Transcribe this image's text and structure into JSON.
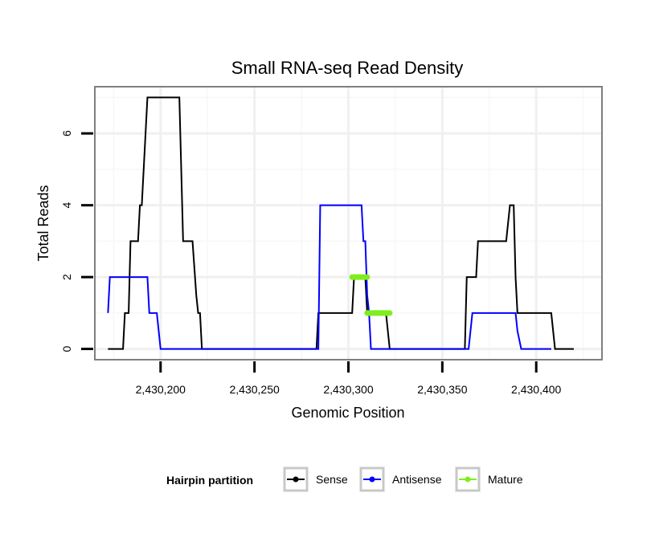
{
  "chart_data": {
    "type": "line",
    "title": "Small RNA-seq Read Density",
    "xlabel": "Genomic Position",
    "ylabel": "Total Reads",
    "xlim": [
      2430165,
      2430435
    ],
    "ylim": [
      -0.3,
      7.3
    ],
    "x_ticks": [
      2430200,
      2430250,
      2430300,
      2430350,
      2430400
    ],
    "x_tick_labels": [
      "2,430,200",
      "2,430,250",
      "2,430,300",
      "2,430,350",
      "2,430,400"
    ],
    "y_ticks": [
      0,
      2,
      4,
      6
    ],
    "y_tick_labels": [
      "0",
      "2",
      "4",
      "6"
    ],
    "grid": true,
    "legend": {
      "title": "Hairpin partition",
      "position": "bottom",
      "entries": [
        "Sense",
        "Antisense",
        "Mature"
      ]
    },
    "series": [
      {
        "name": "Sense",
        "color": "#000000",
        "x": [
          2430172,
          2430180,
          2430181,
          2430183,
          2430184,
          2430188,
          2430189,
          2430190,
          2430193,
          2430194,
          2430210,
          2430212,
          2430217,
          2430219,
          2430220,
          2430221,
          2430222,
          2430283,
          2430284,
          2430285,
          2430302,
          2430303,
          2430309,
          2430310,
          2430312,
          2430313,
          2430320,
          2430321,
          2430322,
          2430362,
          2430363,
          2430368,
          2430369,
          2430370,
          2430384,
          2430386,
          2430388,
          2430389,
          2430390,
          2430391,
          2430400,
          2430408,
          2430410,
          2430420
        ],
        "y": [
          0,
          0,
          1,
          1,
          3,
          3,
          4,
          4,
          7,
          7,
          7,
          3,
          3,
          1.5,
          1,
          1,
          0,
          0,
          1,
          1,
          1,
          2,
          2,
          1,
          1,
          1,
          1,
          0.5,
          0,
          0,
          2,
          2,
          3,
          3,
          3,
          4,
          4,
          2,
          1,
          1,
          1,
          1,
          0,
          0
        ]
      },
      {
        "name": "Antisense",
        "color": "#0000ff",
        "x": [
          2430172,
          2430173,
          2430193,
          2430194,
          2430198,
          2430200,
          2430284,
          2430285,
          2430307,
          2430308,
          2430309,
          2430310,
          2430311,
          2430312,
          2430364,
          2430366,
          2430387,
          2430388,
          2430389,
          2430390,
          2430392,
          2430400,
          2430408
        ],
        "y": [
          1,
          2,
          2,
          1,
          1,
          0,
          0,
          4,
          4,
          3,
          3,
          1.5,
          1,
          0,
          0,
          1,
          1,
          1,
          1,
          0.5,
          0,
          0,
          0
        ]
      },
      {
        "name": "Mature",
        "color": "#80ee1c",
        "x": [
          2430302,
          2430310,
          null,
          2430310,
          2430322
        ],
        "y": [
          2,
          2,
          null,
          1,
          1
        ]
      }
    ]
  }
}
